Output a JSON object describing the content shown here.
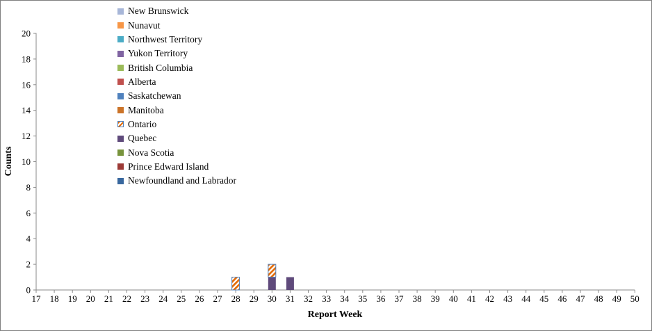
{
  "chart_data": {
    "type": "bar",
    "stacked": true,
    "title": "",
    "xlabel": "Report Week",
    "ylabel": "Counts",
    "categories": [
      17,
      18,
      19,
      20,
      21,
      22,
      23,
      24,
      25,
      26,
      27,
      28,
      29,
      30,
      31,
      32,
      33,
      34,
      35,
      36,
      37,
      38,
      39,
      40,
      41,
      42,
      43,
      44,
      45,
      46,
      47,
      48,
      49,
      50
    ],
    "ylim": [
      0,
      20
    ],
    "y_ticks": [
      0,
      2,
      4,
      6,
      8,
      10,
      12,
      14,
      16,
      18,
      20
    ],
    "grid": false,
    "legend_position": "top-left-inside",
    "axis_color": "#8a8a8a",
    "series": [
      {
        "name": "New Brunswick",
        "color": "#a7b6d8"
      },
      {
        "name": "Nunavut",
        "color": "#f79646"
      },
      {
        "name": "Northwest Territory",
        "color": "#4bacc6"
      },
      {
        "name": "Yukon Territory",
        "color": "#8064a2"
      },
      {
        "name": "British Columbia",
        "color": "#9bbb59"
      },
      {
        "name": "Alberta",
        "color": "#c0504d"
      },
      {
        "name": "Saskatchewan",
        "color": "#4f81bd"
      },
      {
        "name": "Manitoba",
        "color": "#cb7328"
      },
      {
        "name": "Ontario",
        "fill": "diagonal-stripes",
        "stripe_color": "#e36c09",
        "bg_color": "#ffffff",
        "border_color": "#4f81bd"
      },
      {
        "name": "Quebec",
        "color": "#5f4a7b"
      },
      {
        "name": "Nova Scotia",
        "color": "#77933c"
      },
      {
        "name": "Prince Edward Island",
        "color": "#9c3a36"
      },
      {
        "name": "Newfoundland and Labrador",
        "color": "#38679e"
      }
    ],
    "bars": [
      {
        "week": 28,
        "segments": [
          {
            "series": "Ontario",
            "value": 1
          }
        ]
      },
      {
        "week": 30,
        "segments": [
          {
            "series": "Quebec",
            "value": 1
          },
          {
            "series": "Ontario",
            "value": 1
          }
        ]
      },
      {
        "week": 31,
        "segments": [
          {
            "series": "Quebec",
            "value": 1
          }
        ]
      }
    ]
  }
}
